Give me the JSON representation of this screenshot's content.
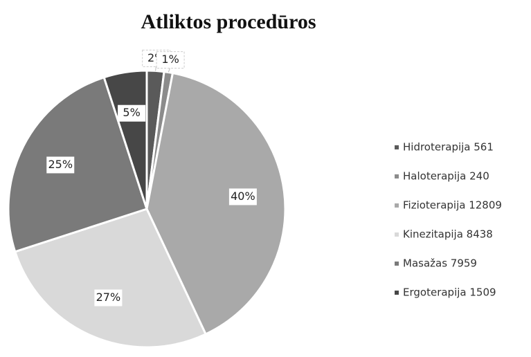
{
  "chart_data": {
    "type": "pie",
    "title": "Atliktos procedūros",
    "categories": [
      "Hidroterapija 561",
      "Haloterapija 240",
      "Fizioterapija 12809",
      "Kinezitapija 8438",
      "Masažas 7959",
      "Ergoterapija 1509"
    ],
    "values": [
      2,
      1,
      40,
      27,
      25,
      5
    ],
    "colors": [
      "#5a5a5a",
      "#8c8c8c",
      "#a9a9a9",
      "#d9d9d9",
      "#7a7a7a",
      "#474747"
    ],
    "legend": "right"
  }
}
